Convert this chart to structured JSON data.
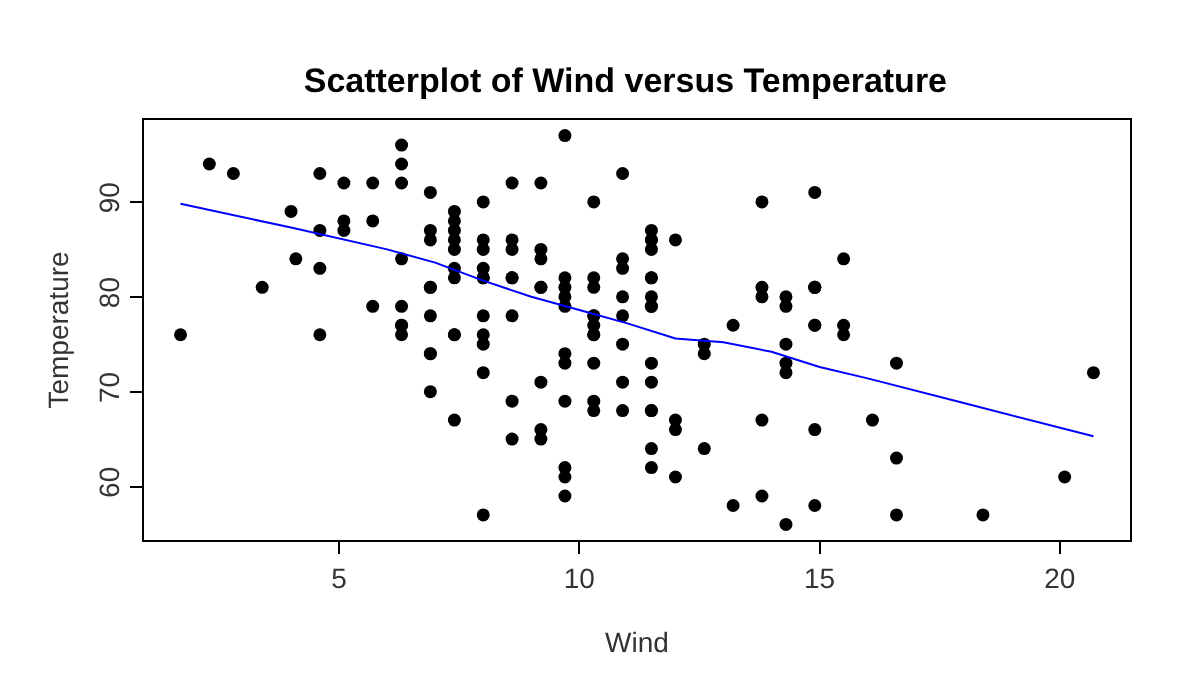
{
  "chart_data": {
    "type": "scatter",
    "title": "Scatterplot of Wind versus Temperature",
    "xlabel": "Wind",
    "ylabel": "Temperature",
    "xlim": [
      0.94,
      21.46
    ],
    "ylim": [
      54.36,
      98.64
    ],
    "xticks": [
      5,
      10,
      15,
      20
    ],
    "yticks": [
      60,
      70,
      80,
      90
    ],
    "series": [
      {
        "marker": "circle",
        "color": "#000000",
        "x": [
          7.4,
          8.0,
          12.6,
          11.5,
          14.3,
          14.9,
          8.6,
          13.8,
          20.1,
          8.6,
          6.9,
          9.7,
          9.2,
          10.9,
          13.2,
          11.5,
          12.0,
          18.4,
          11.5,
          9.7,
          9.7,
          16.6,
          9.7,
          12.0,
          16.6,
          14.9,
          8.0,
          12.0,
          14.9,
          5.7,
          7.4,
          8.6,
          9.7,
          16.1,
          9.2,
          8.6,
          14.3,
          9.7,
          6.9,
          13.8,
          11.5,
          10.9,
          9.2,
          8.0,
          13.8,
          11.5,
          14.9,
          20.7,
          9.2,
          11.5,
          10.3,
          6.3,
          1.7,
          4.6,
          6.3,
          8.0,
          8.0,
          10.3,
          11.5,
          14.9,
          8.0,
          4.1,
          9.2,
          9.2,
          10.9,
          4.6,
          10.9,
          5.1,
          6.3,
          5.7,
          7.4,
          8.6,
          14.3,
          14.9,
          14.9,
          14.3,
          6.9,
          10.3,
          6.3,
          5.1,
          11.5,
          6.9,
          9.7,
          11.5,
          8.6,
          8.0,
          8.6,
          12.0,
          7.4,
          7.4,
          7.4,
          9.2,
          6.9,
          13.8,
          7.4,
          6.9,
          7.4,
          4.6,
          4.0,
          10.3,
          8.0,
          8.6,
          11.5,
          11.5,
          11.5,
          9.7,
          11.5,
          10.3,
          6.3,
          7.4,
          10.9,
          10.3,
          15.5,
          14.3,
          12.6,
          9.7,
          3.4,
          8.0,
          5.7,
          9.7,
          2.3,
          6.3,
          6.3,
          6.9,
          5.1,
          2.8,
          4.6,
          7.4,
          15.5,
          10.9,
          10.3,
          10.9,
          9.7,
          14.9,
          15.5,
          6.3,
          10.9,
          11.5,
          6.9,
          13.8,
          10.3,
          10.3,
          8.0,
          12.6,
          9.2,
          10.3,
          10.3,
          16.6,
          6.9,
          13.2,
          14.3,
          8.0,
          11.5
        ],
        "values": [
          67,
          72,
          74,
          62,
          56,
          66,
          65,
          59,
          61,
          69,
          74,
          69,
          66,
          68,
          58,
          64,
          66,
          57,
          68,
          62,
          59,
          73,
          61,
          61,
          57,
          58,
          57,
          67,
          81,
          79,
          76,
          78,
          74,
          67,
          84,
          85,
          79,
          82,
          87,
          90,
          87,
          93,
          92,
          82,
          80,
          79,
          77,
          72,
          65,
          73,
          76,
          77,
          76,
          76,
          76,
          75,
          78,
          73,
          80,
          77,
          83,
          84,
          85,
          81,
          84,
          83,
          83,
          88,
          92,
          92,
          89,
          82,
          73,
          81,
          91,
          80,
          81,
          82,
          84,
          87,
          85,
          74,
          81,
          82,
          86,
          85,
          82,
          86,
          88,
          86,
          83,
          81,
          81,
          81,
          82,
          86,
          85,
          87,
          89,
          90,
          90,
          92,
          86,
          86,
          82,
          80,
          79,
          77,
          79,
          76,
          78,
          78,
          77,
          72,
          75,
          79,
          81,
          86,
          88,
          97,
          94,
          96,
          94,
          91,
          92,
          93,
          93,
          87,
          84,
          80,
          78,
          75,
          73,
          81,
          76,
          77,
          71,
          71,
          78,
          67,
          76,
          68,
          82,
          64,
          71,
          81,
          69,
          63,
          70,
          77,
          75,
          76,
          68
        ]
      },
      {
        "type": "line",
        "marker": "none",
        "color": "#0000ff",
        "line_style": "solid",
        "x": [
          1.7,
          4,
          6,
          7,
          8,
          9,
          10,
          11,
          12,
          13,
          14,
          15,
          16,
          18,
          20.7
        ],
        "values": [
          89.8,
          87.3,
          85,
          83.6,
          81.7,
          80,
          78.6,
          77.2,
          75.6,
          75.2,
          74.2,
          72.6,
          71.4,
          68.8,
          65.3
        ]
      }
    ]
  }
}
